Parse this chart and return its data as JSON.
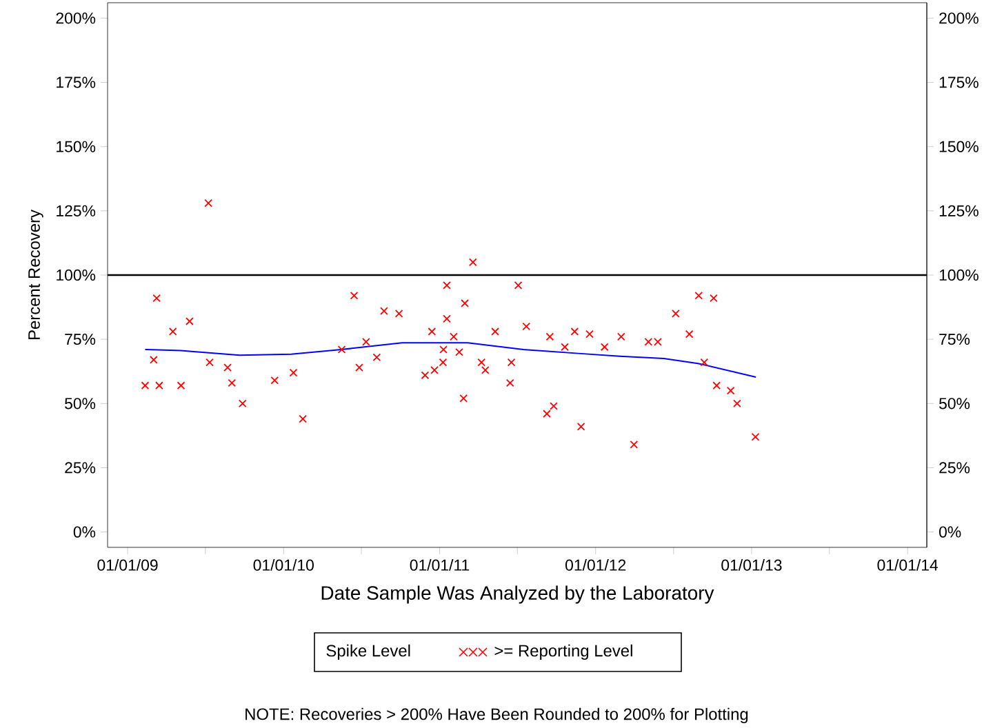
{
  "chart_data": {
    "type": "scatter",
    "xlabel": "Date Sample Was Analyzed by the Laboratory",
    "ylabel": "Percent Recovery",
    "legend_title": "Spike Level",
    "legend": "bottom",
    "annotations": [
      "NOTE: Recoveries > 200% Have Been Rounded to 200% for Plotting"
    ],
    "xlim": [
      "2008-11-15",
      "2014-02-15"
    ],
    "xticks": [
      {
        "value": "2009-01-01",
        "label": "01/01/09"
      },
      {
        "value": "2009-07-02",
        "label": null
      },
      {
        "value": "2010-01-01",
        "label": "01/01/10"
      },
      {
        "value": "2010-07-02",
        "label": null
      },
      {
        "value": "2011-01-01",
        "label": "01/01/11"
      },
      {
        "value": "2011-07-02",
        "label": null
      },
      {
        "value": "2012-01-01",
        "label": "01/01/12"
      },
      {
        "value": "2012-07-02",
        "label": null
      },
      {
        "value": "2013-01-01",
        "label": "01/01/13"
      },
      {
        "value": "2013-07-02",
        "label": null
      },
      {
        "value": "2014-01-01",
        "label": "01/01/14"
      }
    ],
    "ylim": [
      -6,
      206
    ],
    "yticks": [
      {
        "value": 0,
        "label": "0%"
      },
      {
        "value": 25,
        "label": "25%"
      },
      {
        "value": 50,
        "label": "50%"
      },
      {
        "value": 75,
        "label": "75%"
      },
      {
        "value": 100,
        "label": "100%"
      },
      {
        "value": 125,
        "label": "125%"
      },
      {
        "value": 150,
        "label": "150%"
      },
      {
        "value": 175,
        "label": "175%"
      },
      {
        "value": 200,
        "label": "200%"
      }
    ],
    "y2lim": [
      -6,
      206
    ],
    "y2ticks": [
      {
        "value": 0,
        "label": "0%"
      },
      {
        "value": 25,
        "label": "25%"
      },
      {
        "value": 50,
        "label": "50%"
      },
      {
        "value": 75,
        "label": "75%"
      },
      {
        "value": 100,
        "label": "100%"
      },
      {
        "value": 125,
        "label": "125%"
      },
      {
        "value": 150,
        "label": "150%"
      },
      {
        "value": 175,
        "label": "175%"
      },
      {
        "value": 200,
        "label": "200%"
      }
    ],
    "ref_lines": [
      {
        "axis": "y",
        "value": 100,
        "color": "#000000"
      }
    ],
    "series": [
      {
        "name": ">= Reporting Level",
        "color": "#ff0000",
        "marker": "cross",
        "x": [
          "2009-02-11",
          "2009-03-03",
          "2009-03-10",
          "2009-03-16",
          "2009-04-17",
          "2009-05-06",
          "2009-05-26",
          "2009-07-09",
          "2009-07-12",
          "2009-08-23",
          "2009-09-02",
          "2009-09-27",
          "2009-12-11",
          "2010-01-24",
          "2010-02-15",
          "2010-05-17",
          "2010-06-15",
          "2010-06-27",
          "2010-07-13",
          "2010-08-07",
          "2010-08-24",
          "2010-09-28",
          "2010-11-28",
          "2010-12-14",
          "2010-12-20",
          "2011-01-09",
          "2011-01-10",
          "2011-01-18",
          "2011-01-18",
          "2011-02-03",
          "2011-02-16",
          "2011-02-26",
          "2011-03-01",
          "2011-03-20",
          "2011-04-09",
          "2011-04-18",
          "2011-05-11",
          "2011-06-15",
          "2011-06-18",
          "2011-07-04",
          "2011-07-23",
          "2011-09-09",
          "2011-09-16",
          "2011-09-25",
          "2011-10-21",
          "2011-11-13",
          "2011-11-28",
          "2011-12-18",
          "2012-01-22",
          "2012-03-01",
          "2012-03-31",
          "2012-05-04",
          "2012-05-26",
          "2012-07-07",
          "2012-08-08",
          "2012-08-30",
          "2012-09-12",
          "2012-10-04",
          "2012-10-11",
          "2012-11-13",
          "2012-11-28",
          "2013-01-10"
        ],
        "values": [
          57,
          67,
          91,
          57,
          78,
          57,
          82,
          128,
          66,
          64,
          58,
          50,
          59,
          62,
          44,
          71,
          92,
          64,
          74,
          68,
          86,
          85,
          61,
          78,
          63,
          66,
          71,
          96,
          83,
          76,
          70,
          52,
          89,
          105,
          66,
          63,
          78,
          58,
          66,
          96,
          80,
          46,
          76,
          49,
          72,
          78,
          41,
          77,
          72,
          76,
          34,
          74,
          74,
          85,
          77,
          92,
          66,
          91,
          57,
          55,
          50,
          37
        ]
      },
      {
        "type": "line",
        "color": "#0000ff",
        "marker": "none",
        "x": [
          "2009-02-11",
          "2009-05-05",
          "2009-09-20",
          "2010-01-19",
          "2010-05-16",
          "2010-10-05",
          "2011-03-08",
          "2011-07-16",
          "2011-11-21",
          "2012-02-27",
          "2012-06-09",
          "2012-08-28",
          "2013-01-11"
        ],
        "values": [
          71,
          70.6,
          68.8,
          69.2,
          71,
          73.6,
          73.6,
          71,
          69.5,
          68.4,
          67.5,
          65.6,
          60.3
        ]
      }
    ]
  }
}
